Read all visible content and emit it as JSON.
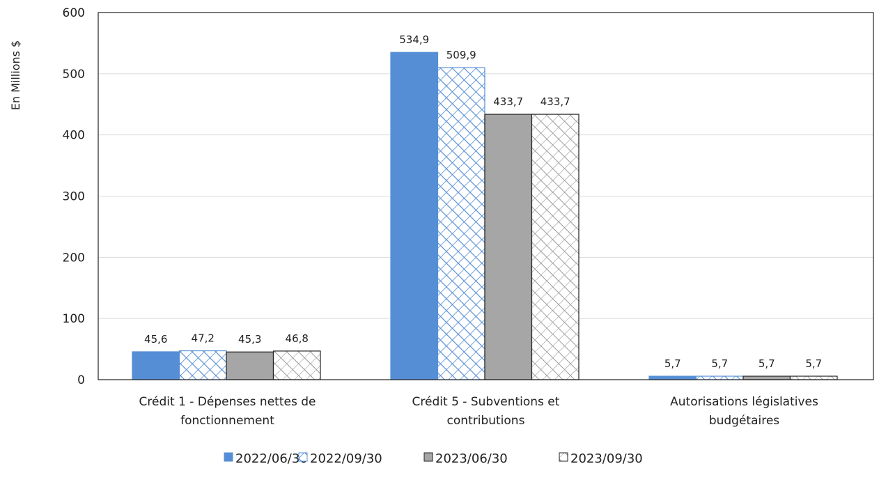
{
  "chart_data": {
    "type": "bar",
    "title": "",
    "xlabel": "",
    "ylabel": "En Millions $",
    "ylim": [
      0,
      600
    ],
    "yticks": [
      "0",
      "100",
      "200",
      "300",
      "400",
      "500",
      "600"
    ],
    "grid": true,
    "legend_position": "bottom",
    "categories": [
      [
        "Crédit 1 - Dépenses nettes de",
        "fonctionnement"
      ],
      [
        "Crédit 5 - Subventions et",
        "contributions"
      ],
      [
        "Autorisations législatives",
        "budgétaires"
      ]
    ],
    "series": [
      {
        "name": "2022/06/30",
        "values": [
          45.6,
          534.9,
          5.7
        ],
        "labels": [
          "45,6",
          "534,9",
          "5,7"
        ],
        "color": "#558ed5",
        "fill": "solid"
      },
      {
        "name": "2022/09/30",
        "values": [
          47.2,
          509.9,
          5.7
        ],
        "labels": [
          "47,2",
          "509,9",
          "5,7"
        ],
        "color": "#558ed5",
        "fill": "hatched"
      },
      {
        "name": "2023/06/30",
        "values": [
          45.3,
          433.7,
          5.7
        ],
        "labels": [
          "45,3",
          "433,7",
          "5,7"
        ],
        "color": "#a6a6a6",
        "fill": "solid"
      },
      {
        "name": "2023/09/30",
        "values": [
          46.8,
          433.7,
          5.7
        ],
        "labels": [
          "46,8",
          "433,7",
          "5,7"
        ],
        "color": "#a6a6a6",
        "fill": "hatched"
      }
    ]
  }
}
